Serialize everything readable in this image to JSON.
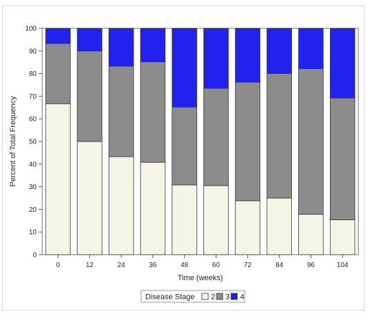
{
  "chart_data": {
    "type": "bar",
    "stacked": true,
    "xlabel": "Time (weeks)",
    "ylabel": "Percent of Total Frequency",
    "ylim": [
      0,
      100
    ],
    "yticks": [
      0,
      10,
      20,
      30,
      40,
      50,
      60,
      70,
      80,
      90,
      100
    ],
    "categories": [
      "0",
      "12",
      "24",
      "36",
      "48",
      "60",
      "72",
      "84",
      "96",
      "104"
    ],
    "series": [
      {
        "name": "2",
        "color": "#f5f5e6",
        "values": [
          66.7,
          50.0,
          43.3,
          40.8,
          30.8,
          30.5,
          23.8,
          25.0,
          17.8,
          15.4
        ]
      },
      {
        "name": "3",
        "color": "#8c8c8c",
        "values": [
          26.6,
          40.0,
          40.0,
          44.4,
          34.4,
          43.0,
          52.4,
          55.0,
          64.4,
          53.8
        ]
      },
      {
        "name": "4",
        "color": "#2222ee",
        "values": [
          6.7,
          10.0,
          16.7,
          14.8,
          34.8,
          26.5,
          23.8,
          20.0,
          17.8,
          30.8
        ]
      }
    ],
    "legend": {
      "title": "Disease Stage",
      "placement": "bottom"
    },
    "grid": false
  }
}
